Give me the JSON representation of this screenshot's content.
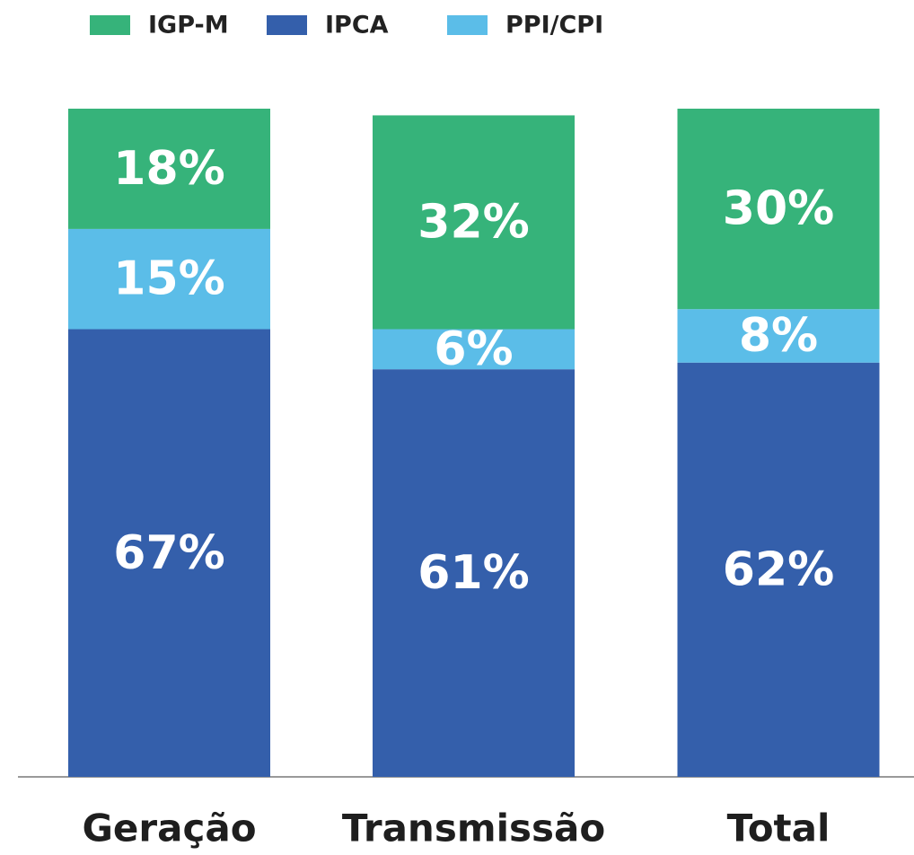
{
  "chart_data": {
    "type": "stacked_bar",
    "categories": [
      "Geração",
      "Transmissão",
      "Total"
    ],
    "series": [
      {
        "name": "IGP-M",
        "color": "#36b37a",
        "values": [
          18,
          32,
          30
        ],
        "value_labels": [
          "18%",
          "32%",
          "30%"
        ]
      },
      {
        "name": "IPCA",
        "color": "#345fab",
        "values": [
          67,
          61,
          62
        ],
        "value_labels": [
          "67%",
          "61%",
          "62%"
        ]
      },
      {
        "name": "PPI/CPI",
        "color": "#5bbde8",
        "values": [
          15,
          6,
          8
        ],
        "value_labels": [
          "15%",
          "6%",
          "8%"
        ]
      }
    ],
    "ylim": [
      0,
      100
    ],
    "legend": "top"
  }
}
